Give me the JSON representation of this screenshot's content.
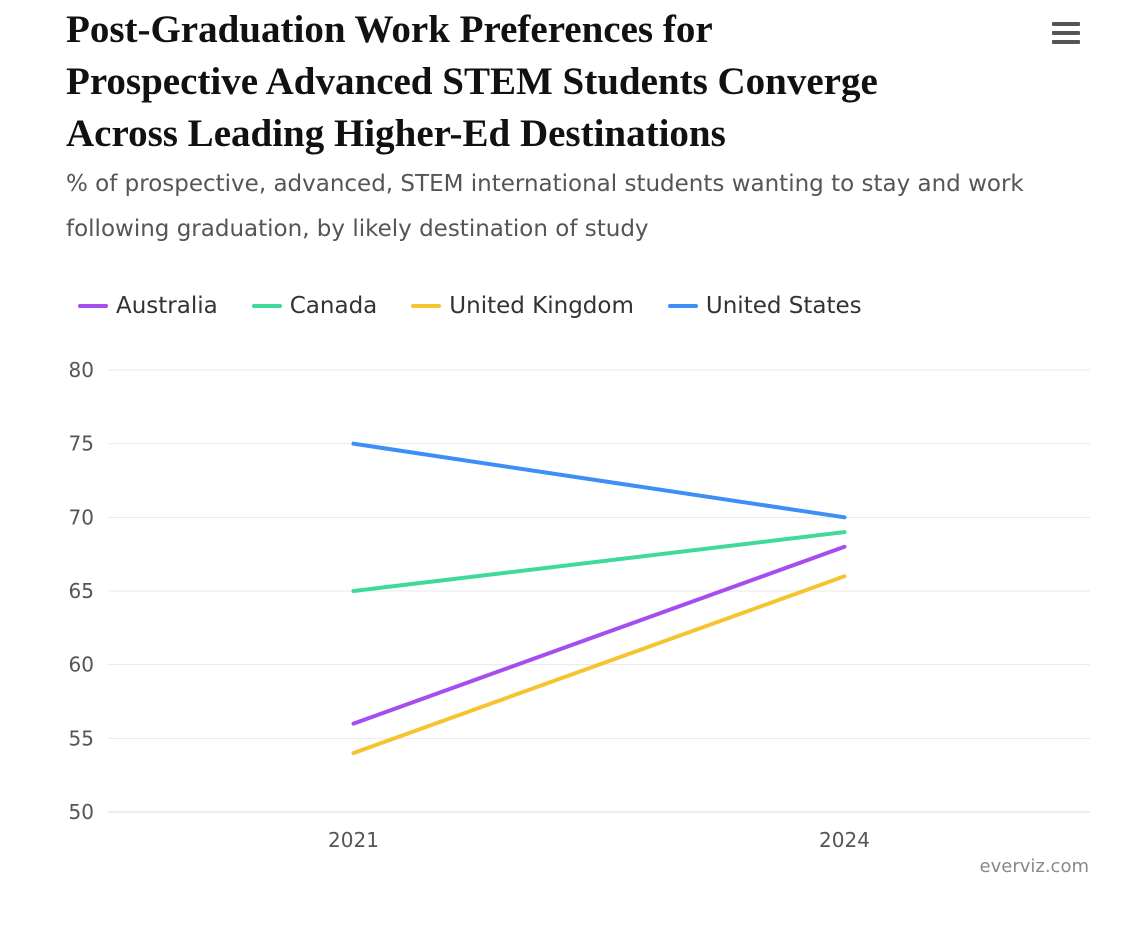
{
  "title_lines": [
    "Post-Graduation Work Preferences for",
    "Prospective Advanced STEM Students Converge",
    "Across Leading Higher-Ed Destinations"
  ],
  "subtitle": "% of prospective, advanced, STEM international students wanting to stay and work following graduation, by likely destination of study",
  "menu_icon": "hamburger-menu-icon",
  "credit": "everviz.com",
  "chart_data": {
    "type": "line",
    "title": "Post-Graduation Work Preferences for Prospective Advanced STEM Students Converge Across Leading Higher-Ed Destinations",
    "subtitle": "% of prospective, advanced, STEM international students wanting to stay and work following graduation, by likely destination of study",
    "xlabel": "",
    "ylabel": "",
    "categories": [
      "2021",
      "2024"
    ],
    "ylim": [
      50,
      80
    ],
    "yticks": [
      50,
      55,
      60,
      65,
      70,
      75,
      80
    ],
    "grid": true,
    "legend_position": "top-left",
    "series": [
      {
        "name": "Australia",
        "color": "#a64df0",
        "values": [
          56,
          68
        ]
      },
      {
        "name": "Canada",
        "color": "#3fd99a",
        "values": [
          65,
          69
        ]
      },
      {
        "name": "United Kingdom",
        "color": "#f5c531",
        "values": [
          54,
          66
        ]
      },
      {
        "name": "United States",
        "color": "#3d8ef5",
        "values": [
          75,
          70
        ]
      }
    ]
  }
}
